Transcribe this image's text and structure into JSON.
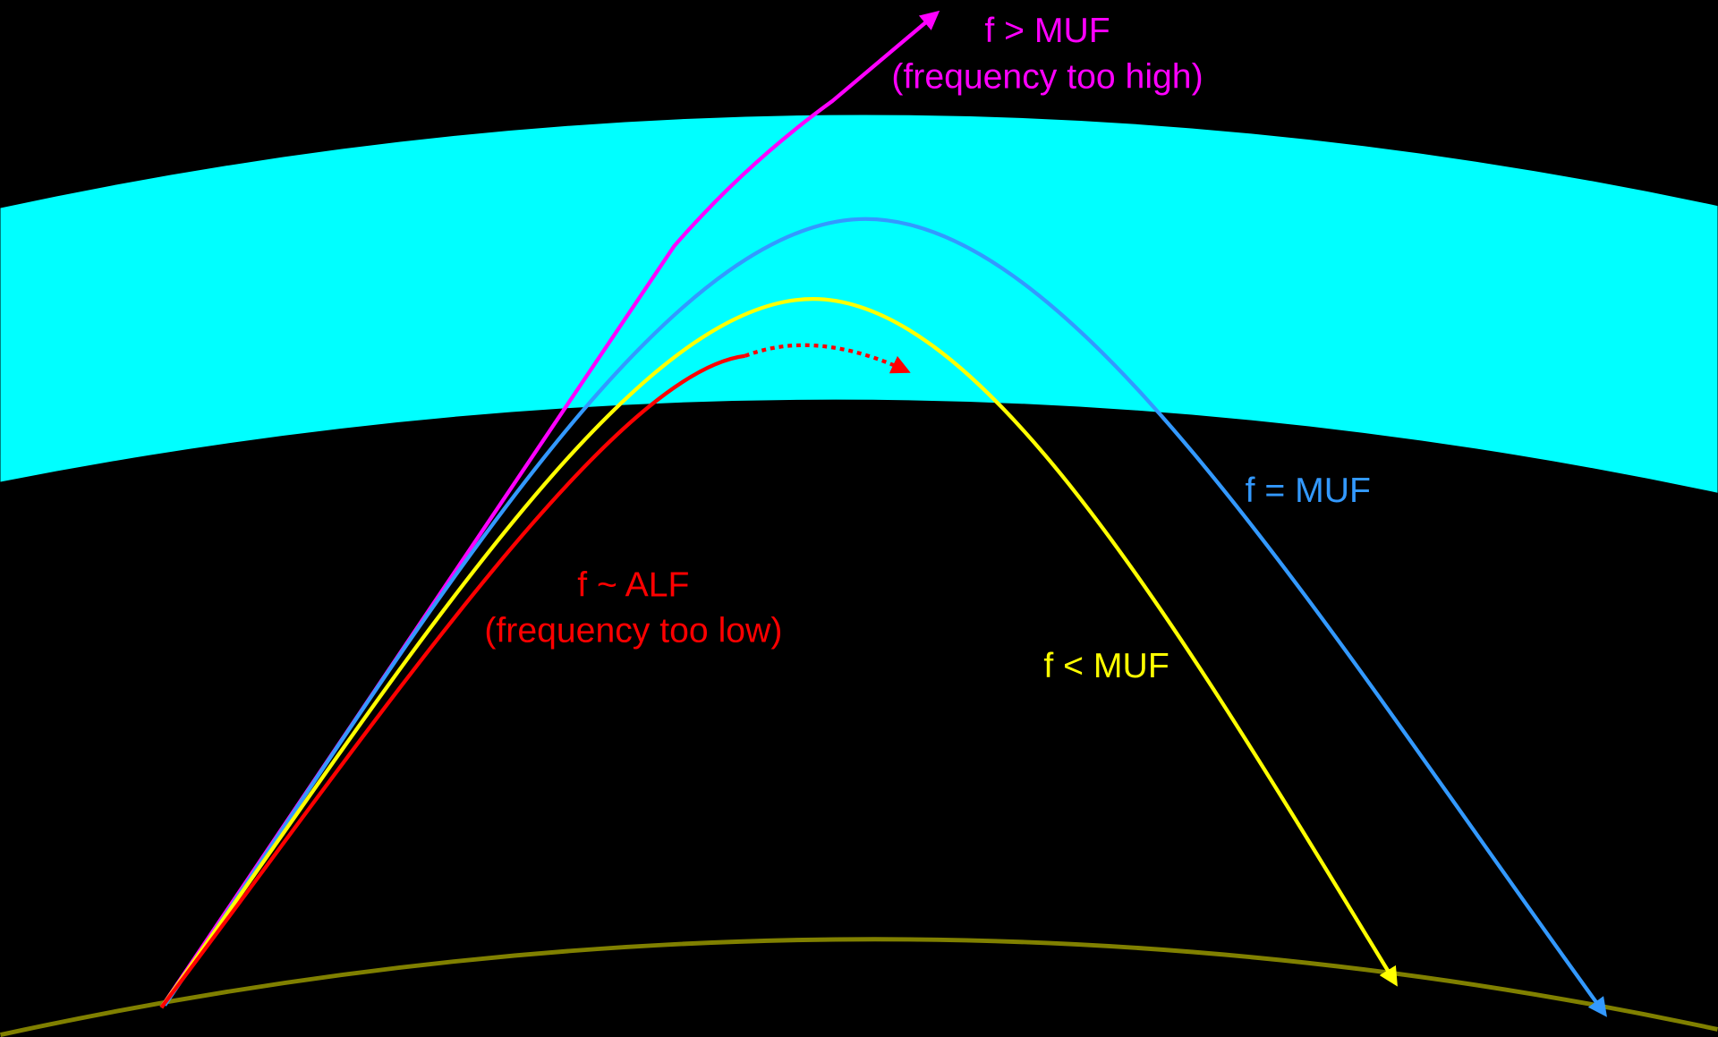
{
  "rays": [
    {
      "name": "f > MUF",
      "note": "(frequency too high)"
    },
    {
      "name": "f = MUF"
    },
    {
      "name": "f < MUF"
    },
    {
      "name": "f ~ ALF",
      "note": "(frequency too low)"
    }
  ]
}
